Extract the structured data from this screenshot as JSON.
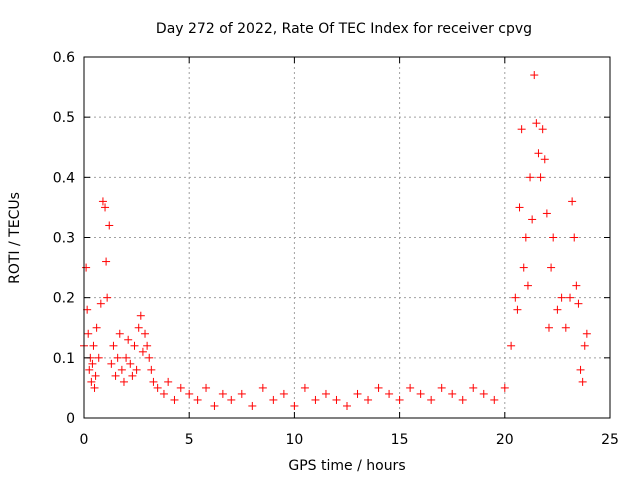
{
  "chart_data": {
    "type": "scatter",
    "title": "Day 272 of 2022, Rate Of TEC Index for receiver cpvg",
    "xlabel": "GPS time / hours",
    "ylabel": "ROTI / TECUs",
    "xlim": [
      0,
      25
    ],
    "ylim": [
      0,
      0.6
    ],
    "xticks": [
      "0",
      "5",
      "10",
      "15",
      "20",
      "25"
    ],
    "yticks": [
      "0",
      "0.1",
      "0.2",
      "0.3",
      "0.4",
      "0.5",
      "0.6"
    ],
    "grid": true,
    "marker": "plus",
    "color": "#ff0000",
    "series": [
      {
        "x": [
          0.0,
          0.1,
          0.15,
          0.2,
          0.25,
          0.3,
          0.35,
          0.4,
          0.45,
          0.5,
          0.55,
          0.6,
          0.7,
          0.8,
          0.9,
          1.0,
          1.05,
          1.1,
          1.2,
          1.3,
          1.4,
          1.5,
          1.6,
          1.7,
          1.8,
          1.9,
          2.0,
          2.1,
          2.2,
          2.3,
          2.4,
          2.5,
          2.6,
          2.7,
          2.8,
          2.9,
          3.0,
          3.1,
          3.2,
          3.3,
          3.5,
          3.8,
          4.0,
          4.3,
          4.6,
          5.0,
          5.4,
          5.8,
          6.2,
          6.6,
          7.0,
          7.5,
          8.0,
          8.5,
          9.0,
          9.5,
          10.0,
          10.5,
          11.0,
          11.5,
          12.0,
          12.5,
          13.0,
          13.5,
          14.0,
          14.5,
          15.0,
          15.5,
          16.0,
          16.5,
          17.0,
          17.5,
          18.0,
          18.5,
          19.0,
          19.5,
          20.0,
          20.3,
          20.5,
          20.6,
          20.7,
          20.8,
          20.9,
          21.0,
          21.1,
          21.2,
          21.3,
          21.4,
          21.5,
          21.6,
          21.7,
          21.8,
          21.9,
          22.0,
          22.1,
          22.2,
          22.3,
          22.5,
          22.7,
          22.9,
          23.1,
          23.2,
          23.3,
          23.4,
          23.5,
          23.6,
          23.7,
          23.8,
          23.9
        ],
        "y": [
          0.12,
          0.25,
          0.18,
          0.14,
          0.08,
          0.1,
          0.06,
          0.09,
          0.12,
          0.05,
          0.07,
          0.15,
          0.1,
          0.19,
          0.36,
          0.35,
          0.26,
          0.2,
          0.32,
          0.09,
          0.12,
          0.07,
          0.1,
          0.14,
          0.08,
          0.06,
          0.1,
          0.13,
          0.09,
          0.07,
          0.12,
          0.08,
          0.15,
          0.17,
          0.11,
          0.14,
          0.12,
          0.1,
          0.08,
          0.06,
          0.05,
          0.04,
          0.06,
          0.03,
          0.05,
          0.04,
          0.03,
          0.05,
          0.02,
          0.04,
          0.03,
          0.04,
          0.02,
          0.05,
          0.03,
          0.04,
          0.02,
          0.05,
          0.03,
          0.04,
          0.03,
          0.02,
          0.04,
          0.03,
          0.05,
          0.04,
          0.03,
          0.05,
          0.04,
          0.03,
          0.05,
          0.04,
          0.03,
          0.05,
          0.04,
          0.03,
          0.05,
          0.12,
          0.2,
          0.18,
          0.35,
          0.48,
          0.25,
          0.3,
          0.22,
          0.4,
          0.33,
          0.57,
          0.49,
          0.44,
          0.4,
          0.48,
          0.43,
          0.34,
          0.15,
          0.25,
          0.3,
          0.18,
          0.2,
          0.15,
          0.2,
          0.36,
          0.3,
          0.22,
          0.19,
          0.08,
          0.06,
          0.12,
          0.14
        ]
      }
    ]
  }
}
